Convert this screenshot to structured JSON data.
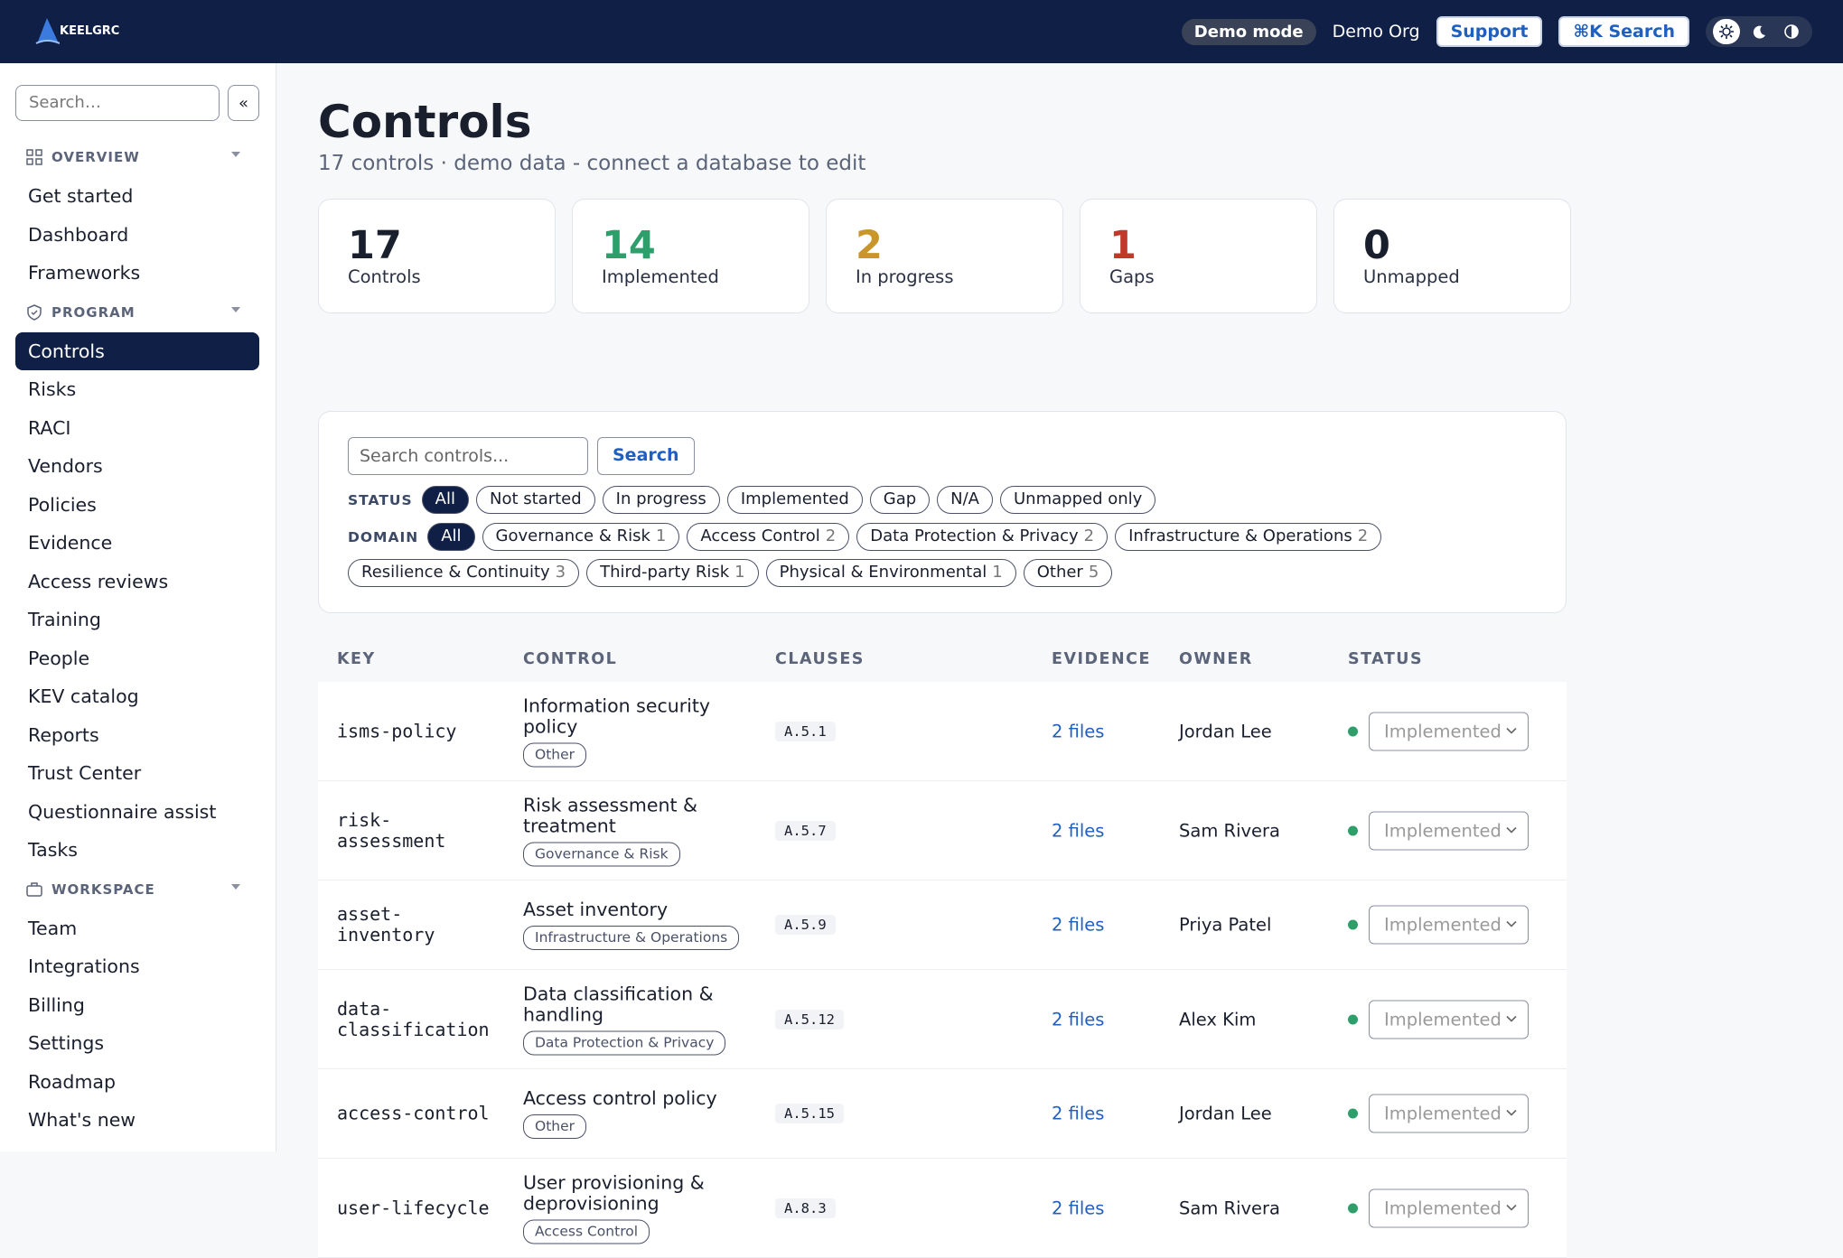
{
  "header": {
    "logo": "KEELGRC",
    "demo_mode": "Demo mode",
    "org": "Demo Org",
    "support": "Support",
    "search": "⌘K Search"
  },
  "sidebar": {
    "search_placeholder": "Search…",
    "collapse": "«",
    "sections": [
      {
        "title": "OVERVIEW",
        "items": [
          "Get started",
          "Dashboard",
          "Frameworks"
        ]
      },
      {
        "title": "PROGRAM",
        "items": [
          "Controls",
          "Risks",
          "RACI",
          "Vendors",
          "Policies",
          "Evidence",
          "Access reviews",
          "Training",
          "People",
          "KEV catalog",
          "Reports",
          "Trust Center",
          "Questionnaire assist",
          "Tasks"
        ]
      },
      {
        "title": "WORKSPACE",
        "items": [
          "Team",
          "Integrations",
          "Billing",
          "Settings",
          "Roadmap",
          "What's new"
        ]
      }
    ]
  },
  "main": {
    "title": "Controls",
    "subtitle": "17 controls · demo data - connect a database to edit",
    "stats": [
      {
        "value": "17",
        "label": "Controls"
      },
      {
        "value": "14",
        "label": "Implemented"
      },
      {
        "value": "2",
        "label": "In progress"
      },
      {
        "value": "1",
        "label": "Gaps"
      },
      {
        "value": "0",
        "label": "Unmapped"
      }
    ],
    "filters": {
      "placeholder": "Search controls...",
      "button": "Search",
      "status_label": "STATUS",
      "status": [
        "All",
        "Not started",
        "In progress",
        "Implemented",
        "Gap",
        "N/A",
        "Unmapped only"
      ],
      "domain_label": "DOMAIN",
      "domains": [
        {
          "name": "All"
        },
        {
          "name": "Governance & Risk",
          "count": "1"
        },
        {
          "name": "Access Control",
          "count": "2"
        },
        {
          "name": "Data Protection & Privacy",
          "count": "2"
        },
        {
          "name": "Infrastructure & Operations",
          "count": "2"
        },
        {
          "name": "Resilience & Continuity",
          "count": "3"
        },
        {
          "name": "Third-party Risk",
          "count": "1"
        },
        {
          "name": "Physical & Environmental",
          "count": "1"
        },
        {
          "name": "Other",
          "count": "5"
        }
      ]
    },
    "table": {
      "headers": [
        "KEY",
        "CONTROL",
        "CLAUSES",
        "EVIDENCE",
        "OWNER",
        "STATUS"
      ],
      "rows": [
        {
          "key": "isms-policy",
          "control": "Information security policy",
          "tag": "Other",
          "clause": "A.5.1",
          "evidence": "2 files",
          "owner": "Jordan Lee",
          "status": "Implemented"
        },
        {
          "key": "risk-assessment",
          "control": "Risk assessment & treatment",
          "tag": "Governance & Risk",
          "clause": "A.5.7",
          "evidence": "2 files",
          "owner": "Sam Rivera",
          "status": "Implemented"
        },
        {
          "key": "asset-inventory",
          "control": "Asset inventory",
          "tag": "Infrastructure & Operations",
          "clause": "A.5.9",
          "evidence": "2 files",
          "owner": "Priya Patel",
          "status": "Implemented"
        },
        {
          "key": "data-classification",
          "control": "Data classification & handling",
          "tag": "Data Protection & Privacy",
          "clause": "A.5.12",
          "evidence": "2 files",
          "owner": "Alex Kim",
          "status": "Implemented"
        },
        {
          "key": "access-control",
          "control": "Access control policy",
          "tag": "Other",
          "clause": "A.5.15",
          "evidence": "2 files",
          "owner": "Jordan Lee",
          "status": "Implemented"
        },
        {
          "key": "user-lifecycle",
          "control": "User provisioning & deprovisioning",
          "tag": "Access Control",
          "clause": "A.8.3",
          "evidence": "2 files",
          "owner": "Sam Rivera",
          "status": "Implemented"
        }
      ]
    }
  }
}
